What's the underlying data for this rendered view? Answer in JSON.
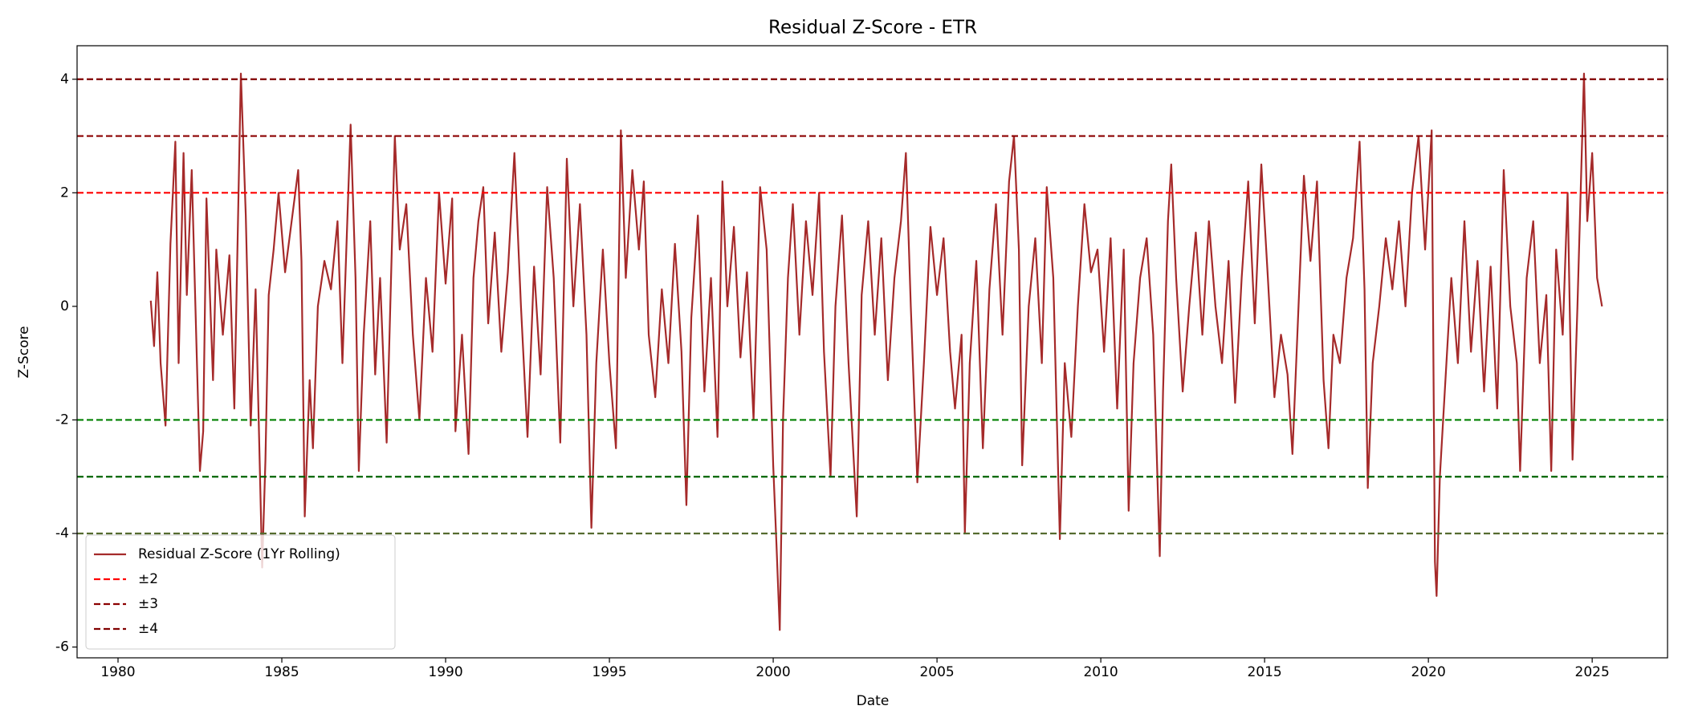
{
  "chart_data": {
    "type": "line",
    "title": "Residual Z-Score - ETR",
    "xlabel": "Date",
    "ylabel": "Z-Score",
    "xlim": [
      1978.75,
      2027.3
    ],
    "xticks": [
      1980,
      1985,
      1990,
      1995,
      2000,
      2005,
      2010,
      2015,
      2020,
      2025
    ],
    "ylim": [
      -6.19,
      4.59
    ],
    "yticks": [
      -6,
      -4,
      -2,
      0,
      2,
      4
    ],
    "legend": "lower left",
    "x": [
      1981.0,
      1981.1,
      1981.2,
      1981.3,
      1981.45,
      1981.6,
      1981.75,
      1981.85,
      1982.0,
      1982.1,
      1982.25,
      1982.4,
      1982.5,
      1982.6,
      1982.7,
      1982.9,
      1983.0,
      1983.2,
      1983.4,
      1983.55,
      1983.75,
      1983.9,
      1984.05,
      1984.2,
      1984.4,
      1984.5,
      1984.6,
      1984.75,
      1984.9,
      1985.1,
      1985.3,
      1985.5,
      1985.6,
      1985.7,
      1985.85,
      1985.95,
      1986.1,
      1986.3,
      1986.5,
      1986.7,
      1986.85,
      1987.1,
      1987.25,
      1987.35,
      1987.5,
      1987.7,
      1987.85,
      1988.0,
      1988.2,
      1988.45,
      1988.6,
      1988.8,
      1989.0,
      1989.2,
      1989.4,
      1989.6,
      1989.8,
      1990.0,
      1990.2,
      1990.3,
      1990.5,
      1990.7,
      1990.85,
      1991.0,
      1991.15,
      1991.3,
      1991.5,
      1991.7,
      1991.9,
      1992.1,
      1992.3,
      1992.5,
      1992.7,
      1992.9,
      1993.1,
      1993.3,
      1993.5,
      1993.7,
      1993.9,
      1994.1,
      1994.3,
      1994.45,
      1994.6,
      1994.8,
      1995.0,
      1995.2,
      1995.35,
      1995.5,
      1995.7,
      1995.9,
      1996.05,
      1996.2,
      1996.4,
      1996.6,
      1996.8,
      1997.0,
      1997.2,
      1997.35,
      1997.5,
      1997.7,
      1997.9,
      1998.1,
      1998.3,
      1998.45,
      1998.6,
      1998.8,
      1999.0,
      1999.2,
      1999.4,
      1999.6,
      1999.8,
      2000.0,
      2000.1,
      2000.2,
      2000.3,
      2000.45,
      2000.6,
      2000.8,
      2001.0,
      2001.2,
      2001.4,
      2001.55,
      2001.75,
      2001.9,
      2002.1,
      2002.3,
      2002.55,
      2002.7,
      2002.9,
      2003.1,
      2003.3,
      2003.5,
      2003.7,
      2003.9,
      2004.05,
      2004.2,
      2004.4,
      2004.6,
      2004.8,
      2005.0,
      2005.2,
      2005.4,
      2005.55,
      2005.75,
      2005.85,
      2006.0,
      2006.2,
      2006.4,
      2006.6,
      2006.8,
      2007.0,
      2007.2,
      2007.35,
      2007.5,
      2007.6,
      2007.8,
      2008.0,
      2008.2,
      2008.35,
      2008.55,
      2008.75,
      2008.9,
      2009.1,
      2009.3,
      2009.5,
      2009.7,
      2009.9,
      2010.1,
      2010.3,
      2010.5,
      2010.7,
      2010.85,
      2011.0,
      2011.2,
      2011.4,
      2011.6,
      2011.8,
      2011.9,
      2012.05,
      2012.15,
      2012.3,
      2012.5,
      2012.7,
      2012.9,
      2013.1,
      2013.3,
      2013.5,
      2013.7,
      2013.9,
      2014.1,
      2014.3,
      2014.5,
      2014.7,
      2014.9,
      2015.1,
      2015.3,
      2015.5,
      2015.7,
      2015.85,
      2016.0,
      2016.2,
      2016.4,
      2016.6,
      2016.8,
      2016.95,
      2017.1,
      2017.3,
      2017.5,
      2017.7,
      2017.9,
      2018.05,
      2018.15,
      2018.3,
      2018.5,
      2018.7,
      2018.9,
      2019.1,
      2019.3,
      2019.5,
      2019.7,
      2019.9,
      2020.1,
      2020.2,
      2020.25,
      2020.35,
      2020.5,
      2020.7,
      2020.9,
      2021.1,
      2021.3,
      2021.5,
      2021.7,
      2021.9,
      2022.1,
      2022.3,
      2022.5,
      2022.7,
      2022.8,
      2023.0,
      2023.2,
      2023.4,
      2023.6,
      2023.75,
      2023.9,
      2024.1,
      2024.25,
      2024.4,
      2024.55,
      2024.75,
      2024.85,
      2025.0,
      2025.15,
      2025.3
    ],
    "series": [
      {
        "name": "Residual Z-Score (1Yr Rolling)",
        "color": "#a52a2a",
        "values": [
          0.1,
          -0.7,
          0.6,
          -1.0,
          -2.1,
          1.1,
          2.9,
          -1.0,
          2.7,
          0.2,
          2.4,
          -0.8,
          -2.9,
          -2.2,
          1.9,
          -1.3,
          1.0,
          -0.5,
          0.9,
          -1.8,
          4.1,
          1.6,
          -2.1,
          0.3,
          -4.6,
          -2.7,
          0.2,
          1.0,
          2.0,
          0.6,
          1.5,
          2.4,
          0.8,
          -3.7,
          -1.3,
          -2.5,
          0.0,
          0.8,
          0.3,
          1.5,
          -1.0,
          3.2,
          0.5,
          -2.9,
          -0.5,
          1.5,
          -1.2,
          0.5,
          -2.4,
          3.0,
          1.0,
          1.8,
          -0.5,
          -2.0,
          0.5,
          -0.8,
          2.0,
          0.4,
          1.9,
          -2.2,
          -0.5,
          -2.6,
          0.5,
          1.5,
          2.1,
          -0.3,
          1.3,
          -0.8,
          0.6,
          2.7,
          0.0,
          -2.3,
          0.7,
          -1.2,
          2.1,
          0.5,
          -2.4,
          2.6,
          0.0,
          1.8,
          -0.5,
          -3.9,
          -1.0,
          1.0,
          -1.0,
          -2.5,
          3.1,
          0.5,
          2.4,
          1.0,
          2.2,
          -0.5,
          -1.6,
          0.3,
          -1.0,
          1.1,
          -0.8,
          -3.5,
          -0.2,
          1.6,
          -1.5,
          0.5,
          -2.3,
          2.2,
          0.0,
          1.4,
          -0.9,
          0.6,
          -2.0,
          2.1,
          1.0,
          -2.8,
          -4.2,
          -5.7,
          -2.0,
          0.5,
          1.8,
          -0.5,
          1.5,
          0.2,
          2.0,
          -0.8,
          -3.0,
          0.0,
          1.6,
          -1.0,
          -3.7,
          0.2,
          1.5,
          -0.5,
          1.2,
          -1.3,
          0.5,
          1.5,
          2.7,
          0.0,
          -3.1,
          -1.0,
          1.4,
          0.2,
          1.2,
          -0.8,
          -1.8,
          -0.5,
          -4.0,
          -1.0,
          0.8,
          -2.5,
          0.3,
          1.8,
          -0.5,
          2.2,
          3.0,
          1.0,
          -2.8,
          0.0,
          1.2,
          -1.0,
          2.1,
          0.5,
          -4.1,
          -1.0,
          -2.3,
          0.0,
          1.8,
          0.6,
          1.0,
          -0.8,
          1.2,
          -1.8,
          1.0,
          -3.6,
          -1.0,
          0.5,
          1.2,
          -0.5,
          -4.4,
          -1.5,
          1.5,
          2.5,
          0.5,
          -1.5,
          0.0,
          1.3,
          -0.5,
          1.5,
          0.0,
          -1.0,
          0.8,
          -1.7,
          0.5,
          2.2,
          -0.3,
          2.5,
          0.5,
          -1.6,
          -0.5,
          -1.2,
          -2.6,
          -0.5,
          2.3,
          0.8,
          2.2,
          -1.3,
          -2.5,
          -0.5,
          -1.0,
          0.5,
          1.2,
          2.9,
          0.3,
          -3.2,
          -1.0,
          0.0,
          1.2,
          0.3,
          1.5,
          0.0,
          2.0,
          3.0,
          1.0,
          3.1,
          -4.5,
          -5.1,
          -3.0,
          -1.5,
          0.5,
          -1.0,
          1.5,
          -0.8,
          0.8,
          -1.5,
          0.7,
          -1.8,
          2.4,
          0.0,
          -1.0,
          -2.9,
          0.5,
          1.5,
          -1.0,
          0.2,
          -2.9,
          1.0,
          -0.5,
          2.0,
          -2.7,
          0.0,
          4.1,
          1.5,
          2.7,
          0.5,
          0.0
        ]
      }
    ],
    "thresholds": [
      {
        "name": "±2",
        "upper": 2,
        "lower": -2,
        "color": "#ff0000",
        "lower_color": "#008000"
      },
      {
        "name": "±3",
        "upper": 3,
        "lower": -3,
        "color": "#8b0000",
        "lower_color": "#006400"
      },
      {
        "name": "±4",
        "upper": 4,
        "lower": -4,
        "color": "#800000",
        "lower_color": "#556b2f"
      }
    ]
  }
}
